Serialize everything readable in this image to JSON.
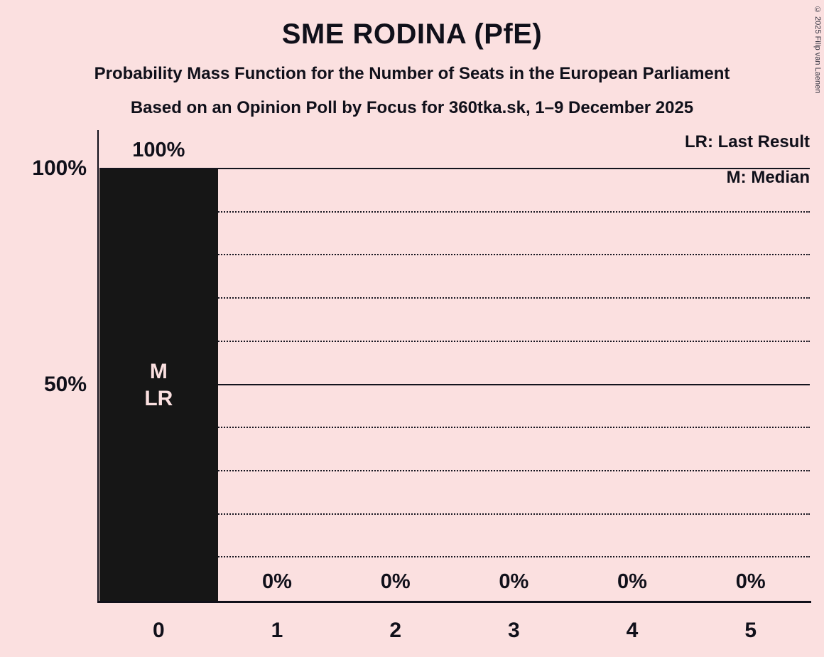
{
  "chart_data": {
    "type": "bar",
    "title": "SME RODINA (PfE)",
    "subtitle": "Probability Mass Function for the Number of Seats in the European Parliament",
    "source_line": "Based on an Opinion Poll by Focus for 360tka.sk, 1–9 December 2025",
    "categories": [
      "0",
      "1",
      "2",
      "3",
      "4",
      "5"
    ],
    "values": [
      100,
      0,
      0,
      0,
      0,
      0
    ],
    "value_labels": [
      "100%",
      "0%",
      "0%",
      "0%",
      "0%",
      "0%"
    ],
    "xlabel": "",
    "ylabel": "",
    "ylim": [
      0,
      100
    ],
    "yticks": [
      {
        "value": 100,
        "label": "100%"
      },
      {
        "value": 50,
        "label": "50%"
      }
    ],
    "gridlines": {
      "solid": [
        50,
        100
      ],
      "dotted": [
        10,
        20,
        30,
        40,
        60,
        70,
        80,
        90
      ]
    },
    "bar_annotations": [
      {
        "category": "0",
        "lines": [
          "M",
          "LR"
        ]
      }
    ],
    "legend": [
      {
        "label": "LR: Last Result"
      },
      {
        "label": "M: Median"
      }
    ],
    "legend_position": "top-right",
    "grid": "horizontal",
    "colors": {
      "bar": "#161616",
      "background": "#fbe0e0",
      "text": "#10101a",
      "annotation_text": "#fbe0e0"
    }
  },
  "copyright": "© 2025 Filip van Laenen"
}
